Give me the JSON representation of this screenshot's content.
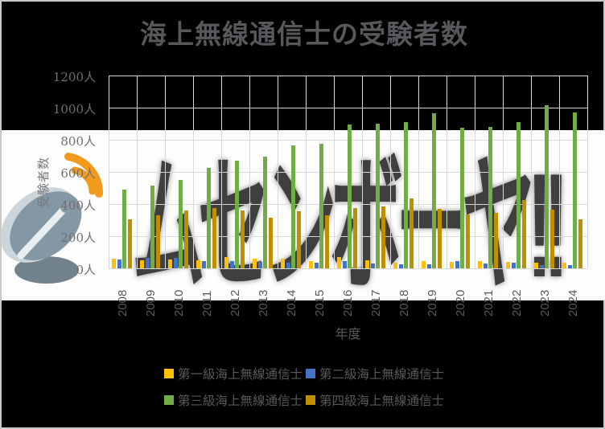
{
  "title": "海上無線通信士の受験者数",
  "watermark_text": "ムセンボーヤ!!",
  "y_axis": {
    "title": "受験者数",
    "ticks": [
      "1200人",
      "1000人",
      "800人",
      "600人",
      "400人",
      "200人",
      "0人"
    ]
  },
  "x_axis": {
    "title": "年度"
  },
  "colors": {
    "background": "#000000",
    "stripe": "#fdfdfd",
    "gridline": "#d9d9d9",
    "title_text": "#56585c",
    "axis_text": "#595959",
    "watermark_text_color": "#3f3f3f",
    "satellite_orange": "#f19a1e",
    "satellite_gray": "#8397a4"
  },
  "icons": {
    "left_decoration": "satellite-dish-icon"
  },
  "chart_data": {
    "type": "bar",
    "title": "海上無線通信士の受験者数",
    "xlabel": "年度",
    "ylabel": "受験者数",
    "ylim": [
      0,
      1200
    ],
    "ytick_step": 200,
    "ytick_suffix": "人",
    "grid": true,
    "legend_position": "bottom",
    "categories": [
      "2008",
      "2009",
      "2010",
      "2011",
      "2012",
      "2013",
      "2014",
      "2015",
      "2016",
      "2017",
      "2018",
      "2019",
      "2020",
      "2021",
      "2022",
      "2023",
      "2024"
    ],
    "series": [
      {
        "name": "第一級海上無線通信士",
        "color": "#FFC000",
        "values": [
          60,
          50,
          55,
          50,
          70,
          60,
          60,
          45,
          70,
          50,
          35,
          45,
          40,
          45,
          40,
          35,
          35
        ]
      },
      {
        "name": "第二級海上無線通信士",
        "color": "#4472C4",
        "values": [
          55,
          65,
          65,
          45,
          45,
          40,
          35,
          35,
          45,
          30,
          25,
          25,
          45,
          30,
          35,
          20,
          20
        ]
      },
      {
        "name": "第三級海上無線通信士",
        "color": "#70AD47",
        "values": [
          490,
          515,
          550,
          625,
          670,
          695,
          765,
          775,
          895,
          900,
          910,
          965,
          875,
          880,
          910,
          1015,
          970
        ]
      },
      {
        "name": "第四級海上無線通信士",
        "color": "#BF8F00",
        "values": [
          305,
          330,
          360,
          375,
          360,
          315,
          355,
          330,
          375,
          385,
          435,
          370,
          335,
          345,
          425,
          365,
          305
        ]
      }
    ]
  }
}
